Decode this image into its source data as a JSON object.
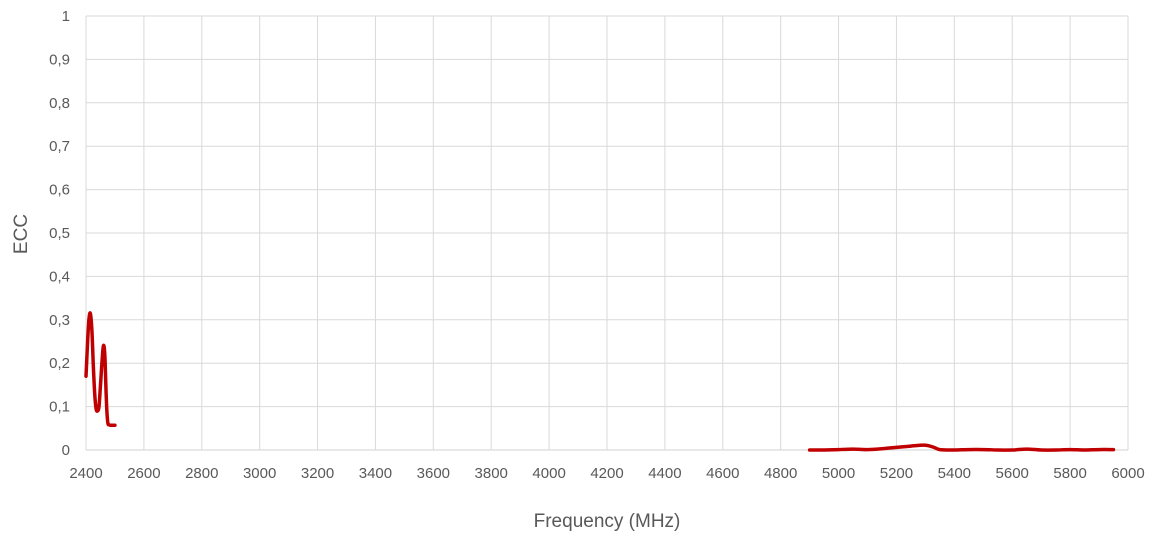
{
  "chart_data": {
    "type": "line",
    "title": "",
    "xlabel": "Frequency (MHz)",
    "ylabel": "ECC",
    "xlim": [
      2400,
      6000
    ],
    "ylim": [
      0,
      1
    ],
    "x_ticks": [
      2400,
      2600,
      2800,
      3000,
      3200,
      3400,
      3600,
      3800,
      4000,
      4200,
      4400,
      4600,
      4800,
      5000,
      5200,
      5400,
      5600,
      5800,
      6000
    ],
    "x_tick_labels": [
      "2400",
      "2600",
      "2800",
      "3000",
      "3200",
      "3400",
      "3600",
      "3800",
      "4000",
      "4200",
      "4400",
      "4600",
      "4800",
      "5000",
      "5200",
      "5400",
      "5600",
      "5800",
      "6000"
    ],
    "y_ticks": [
      0,
      0.1,
      0.2,
      0.3,
      0.4,
      0.5,
      0.6,
      0.7,
      0.8,
      0.9,
      1
    ],
    "y_tick_labels": [
      "0",
      "0,1",
      "0,2",
      "0,3",
      "0,4",
      "0,5",
      "0,6",
      "0,7",
      "0,8",
      "0,9",
      "1"
    ],
    "grid": true,
    "legend": "none",
    "series": [
      {
        "color": "#c00000",
        "segments": [
          {
            "x": [
              2400,
              2405,
              2410,
              2415,
              2420,
              2425,
              2430,
              2435,
              2440,
              2445,
              2450,
              2455,
              2460,
              2465,
              2470,
              2475,
              2480,
              2485,
              2490,
              2495,
              2500
            ],
            "y": [
              0.17,
              0.24,
              0.3,
              0.315,
              0.28,
              0.2,
              0.13,
              0.095,
              0.09,
              0.1,
              0.15,
              0.2,
              0.24,
              0.22,
              0.12,
              0.065,
              0.058,
              0.057,
              0.057,
              0.057,
              0.057
            ]
          },
          {
            "x": [
              4900,
              4950,
              5000,
              5050,
              5100,
              5150,
              5200,
              5250,
              5300,
              5330,
              5350,
              5400,
              5450,
              5500,
              5550,
              5600,
              5650,
              5700,
              5750,
              5800,
              5850,
              5900,
              5950
            ],
            "y": [
              0.0,
              0.0,
              0.001,
              0.002,
              0.001,
              0.003,
              0.006,
              0.009,
              0.011,
              0.006,
              0.001,
              0.0,
              0.001,
              0.001,
              0.0,
              0.0,
              0.002,
              0.0,
              0.0,
              0.001,
              0.0,
              0.001,
              0.001
            ]
          }
        ]
      }
    ]
  }
}
